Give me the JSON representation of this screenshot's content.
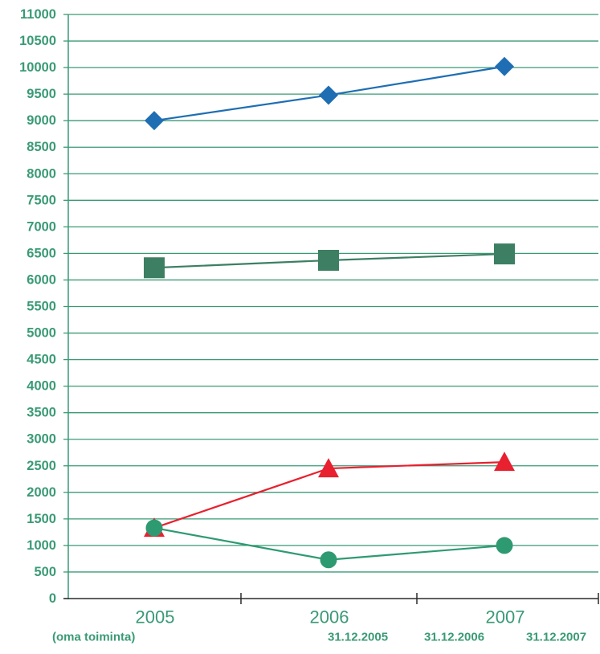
{
  "chart_data": {
    "type": "line",
    "categories": [
      "2005",
      "2006",
      "2007"
    ],
    "ylim": [
      0,
      11000
    ],
    "yticks": [
      0,
      500,
      1000,
      1500,
      2000,
      2500,
      3000,
      3500,
      4000,
      4500,
      5000,
      5500,
      6000,
      6500,
      7000,
      7500,
      8000,
      8500,
      9000,
      9500,
      10000,
      10500,
      11000
    ],
    "grid": true,
    "series": [
      {
        "values": [
          9000,
          9480,
          10020
        ],
        "color": "#1f6eb4",
        "marker": "diamond"
      },
      {
        "values": [
          6230,
          6370,
          6490
        ],
        "color": "#3d7f63",
        "marker": "square"
      },
      {
        "values": [
          1330,
          2450,
          2570
        ],
        "color": "#e8202f",
        "marker": "triangle"
      },
      {
        "values": [
          1330,
          730,
          1000
        ],
        "color": "#2e9a72",
        "marker": "circle"
      }
    ],
    "colors": {
      "axis_text": "#3a9a76",
      "grid": "#3a9a76"
    }
  },
  "footer": {
    "left": "(oma toiminta)",
    "dates": [
      "31.12.2005",
      "31.12.2006",
      "31.12.2007"
    ]
  }
}
